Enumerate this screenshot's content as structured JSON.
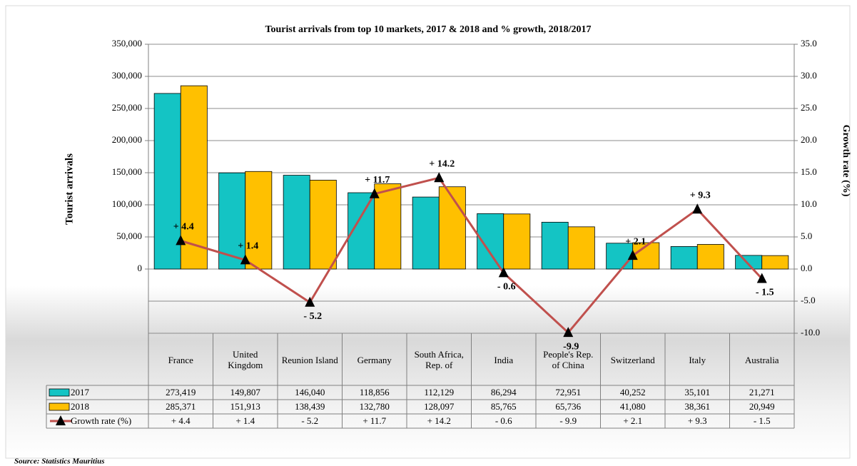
{
  "chart_data": {
    "type": "bar",
    "title": "Tourist arrivals from top 10 markets, 2017 & 2018 and % growth, 2018/2017",
    "y_label": "Tourist arrivals",
    "y2_label": "Growth rate (%)",
    "source": "Source: Statistics Mauritius",
    "categories": [
      "France",
      "United Kingdom",
      "Reunion Island",
      "Germany",
      "South Africa, Rep. of",
      "India",
      "People's Rep. of China",
      "Switzerland",
      "Italy",
      "Australia"
    ],
    "series": [
      {
        "name": "2017",
        "color": "#14c4c4",
        "values": [
          273419,
          149807,
          146040,
          118856,
          112129,
          86294,
          72951,
          40252,
          35101,
          21271
        ],
        "value_labels": [
          "273,419",
          "149,807",
          "146,040",
          "118,856",
          "112,129",
          "86,294",
          "72,951",
          "40,252",
          "35,101",
          "21,271"
        ]
      },
      {
        "name": "2018",
        "color": "#ffc000",
        "values": [
          285371,
          151913,
          138439,
          132780,
          128097,
          85765,
          65736,
          41080,
          38361,
          20949
        ],
        "value_labels": [
          "285,371",
          "151,913",
          "138,439",
          "132,780",
          "128,097",
          "85,765",
          "65,736",
          "41,080",
          "38,361",
          "20,949"
        ]
      },
      {
        "name": "Growth rate (%)",
        "type": "line",
        "axis": "y2",
        "color": "#c0504d",
        "marker_color": "#000000",
        "values": [
          4.4,
          1.4,
          -5.2,
          11.7,
          14.2,
          -0.6,
          -9.9,
          2.1,
          9.3,
          -1.5
        ],
        "value_labels": [
          "+ 4.4",
          "+ 1.4",
          "- 5.2",
          "+ 11.7",
          "+ 14.2",
          "- 0.6",
          "-9.9",
          "+ 2.1",
          "+ 9.3",
          "- 1.5"
        ],
        "table_labels": [
          "+ 4.4",
          "+ 1.4",
          "- 5.2",
          "+ 11.7",
          "+ 14.2",
          "- 0.6",
          "- 9.9",
          "+ 2.1",
          "+ 9.3",
          "- 1.5"
        ]
      }
    ],
    "ylim": [
      -100000,
      350000
    ],
    "yticks": [
      0,
      {
        "value": 50000,
        "label": "50,000"
      },
      {
        "value": 100000,
        "label": "100,000"
      },
      {
        "value": 150000,
        "label": "150,000"
      },
      {
        "value": 200000,
        "label": "200,000"
      },
      {
        "value": 250000,
        "label": "250,000"
      },
      {
        "value": 300000,
        "label": "300,000"
      },
      {
        "value": 350000,
        "label": "350,000"
      }
    ],
    "y2lim": [
      -10,
      35
    ],
    "y2ticks": [
      {
        "value": -10,
        "label": "-10.0"
      },
      {
        "value": -5,
        "label": "-5.0"
      },
      {
        "value": 0,
        "label": "0.0"
      },
      {
        "value": 5,
        "label": "5.0"
      },
      {
        "value": 10,
        "label": "10.0"
      },
      {
        "value": 15,
        "label": "15.0"
      },
      {
        "value": 20,
        "label": "20.0"
      },
      {
        "value": 25,
        "label": "25.0"
      },
      {
        "value": 30,
        "label": "30.0"
      },
      {
        "value": 35,
        "label": "35.0"
      }
    ],
    "grid": true
  }
}
